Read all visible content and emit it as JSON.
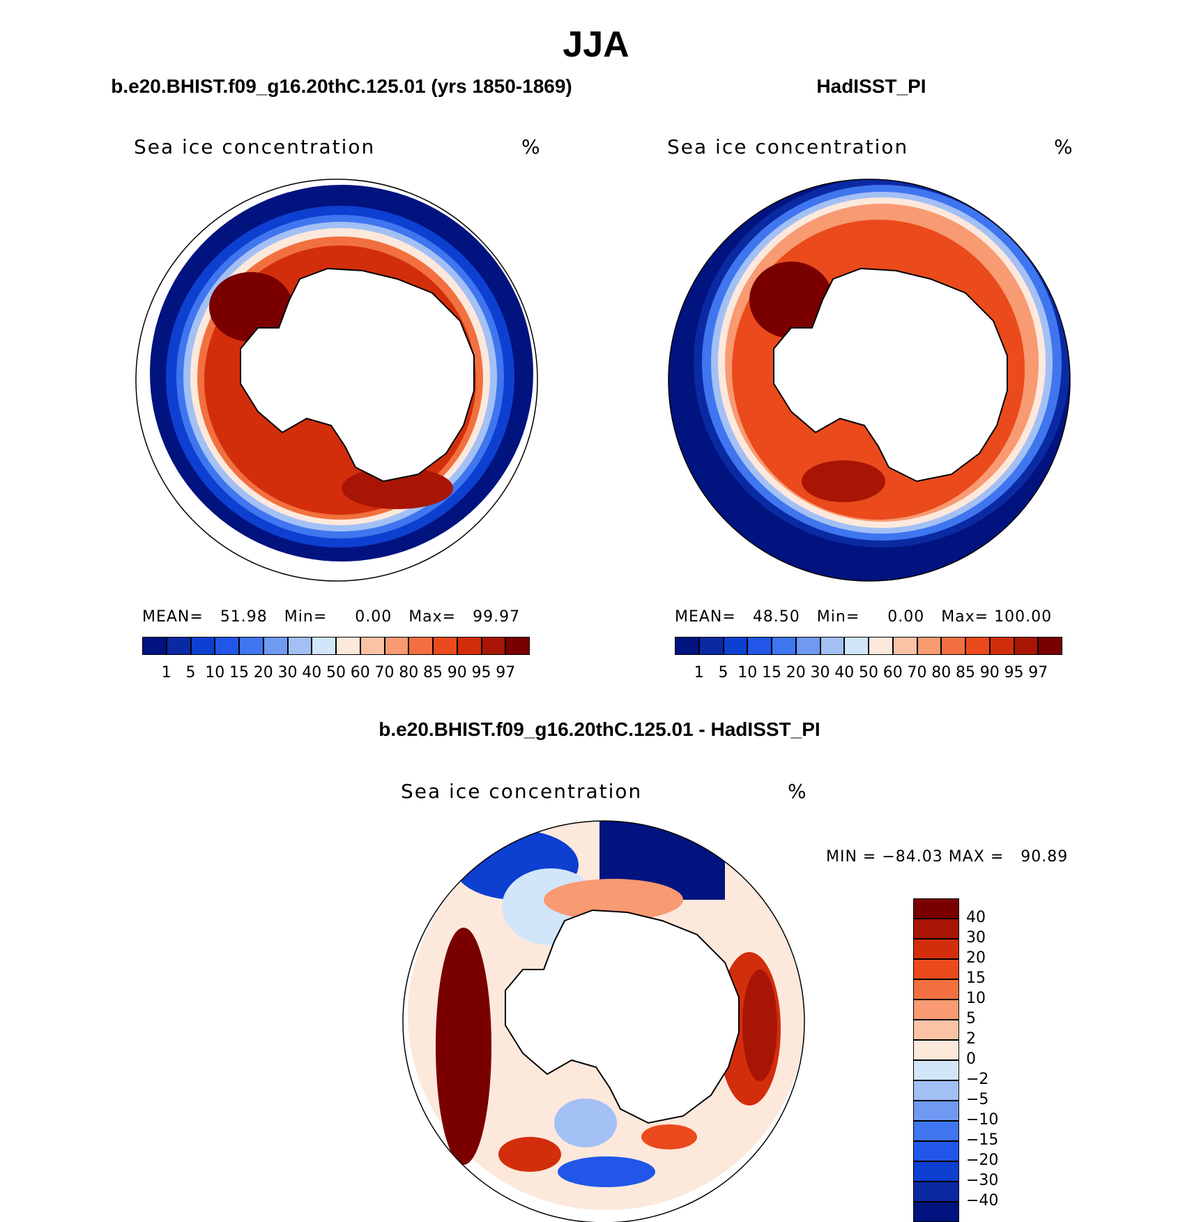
{
  "page_title": "JJA",
  "panels": [
    {
      "title": "b.e20.BHIST.f09_g16.20thC.125.01 (yrs 1850-1869)",
      "variable": "Sea ice concentration",
      "unit": "%",
      "stats": {
        "mean_label": "MEAN=",
        "mean": "51.98",
        "min_label": "Min=",
        "min": "0.00",
        "max_label": "Max=",
        "max": "99.97"
      }
    },
    {
      "title": "HadISST_PI",
      "variable": "Sea ice concentration",
      "unit": "%",
      "stats": {
        "mean_label": "MEAN=",
        "mean": "48.50",
        "min_label": "Min=",
        "min": "0.00",
        "max_label": "Max=",
        "max": "100.00"
      }
    },
    {
      "title": "b.e20.BHIST.f09_g16.20thC.125.01 - HadISST_PI",
      "variable": "Sea ice concentration",
      "unit": "%",
      "stats": {
        "text": "MIN = −84.03 MAX =   90.89"
      }
    }
  ],
  "chart_data": [
    {
      "type": "heatmap",
      "projection": "south polar stereographic",
      "title": "b.e20.BHIST.f09_g16.20thC.125.01 (yrs 1850-1869)",
      "variable": "Sea ice concentration",
      "unit": "%",
      "mean": 51.98,
      "min": 0.0,
      "max": 99.97,
      "colorbar_levels": [
        "1",
        "5",
        "10",
        "15",
        "20",
        "30",
        "40",
        "50",
        "60",
        "70",
        "80",
        "85",
        "90",
        "95",
        "97"
      ],
      "colorbar_colors": [
        "#00137f",
        "#0a2aa3",
        "#0d3fd0",
        "#2156e8",
        "#3f75ee",
        "#7099f2",
        "#a3c0f5",
        "#d2e6f9",
        "#fde8dc",
        "#fbc2a6",
        "#f89a72",
        "#f2703f",
        "#ea4a1c",
        "#d32e0c",
        "#a81505",
        "#7a0000"
      ]
    },
    {
      "type": "heatmap",
      "projection": "south polar stereographic",
      "title": "HadISST_PI",
      "variable": "Sea ice concentration",
      "unit": "%",
      "mean": 48.5,
      "min": 0.0,
      "max": 100.0,
      "colorbar_levels": [
        "1",
        "5",
        "10",
        "15",
        "20",
        "30",
        "40",
        "50",
        "60",
        "70",
        "80",
        "85",
        "90",
        "95",
        "97"
      ],
      "colorbar_colors": [
        "#00137f",
        "#0a2aa3",
        "#0d3fd0",
        "#2156e8",
        "#3f75ee",
        "#7099f2",
        "#a3c0f5",
        "#d2e6f9",
        "#fde8dc",
        "#fbc2a6",
        "#f89a72",
        "#f2703f",
        "#ea4a1c",
        "#d32e0c",
        "#a81505",
        "#7a0000"
      ]
    },
    {
      "type": "heatmap",
      "projection": "south polar stereographic",
      "title": "b.e20.BHIST.f09_g16.20thC.125.01 - HadISST_PI",
      "variable": "Sea ice concentration",
      "unit": "%",
      "min": -84.03,
      "max": 90.89,
      "colorbar_levels": [
        "40",
        "30",
        "20",
        "15",
        "10",
        "5",
        "2",
        "0",
        "−2",
        "−5",
        "−10",
        "−15",
        "−20",
        "−30",
        "−40"
      ],
      "colorbar_colors": [
        "#7a0000",
        "#a81505",
        "#d32e0c",
        "#ea4a1c",
        "#f2703f",
        "#f89a72",
        "#fbc2a6",
        "#fde8dc",
        "#d2e6f9",
        "#a3c0f5",
        "#7099f2",
        "#3f75ee",
        "#2156e8",
        "#0d3fd0",
        "#0a2aa3",
        "#00137f"
      ]
    }
  ]
}
